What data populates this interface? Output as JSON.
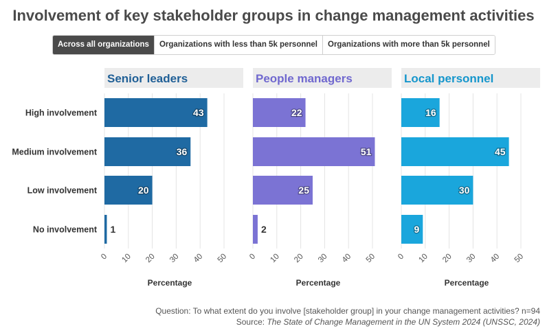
{
  "title": "Involvement of key stakeholder groups in change management activities",
  "tabs": [
    {
      "label": "Across all organizations",
      "active": true
    },
    {
      "label": "Organizations with less than 5k personnel",
      "active": false
    },
    {
      "label": "Organizations with more than 5k personnel",
      "active": false
    }
  ],
  "footer": {
    "question": "Question: To what extent do you involve [stakeholder group] in your change management activities? n=94",
    "source_prefix": "Source: ",
    "source_title": "The State of Change Management in the UN System 2024 (UNSSC, 2024)"
  },
  "chart_data": {
    "type": "bar",
    "orientation": "horizontal",
    "categories": [
      "High involvement",
      "Medium involvement",
      "Low involvement",
      "No involvement"
    ],
    "xlabel": "Percentage",
    "xlim": [
      0,
      55
    ],
    "xticks": [
      0,
      10,
      20,
      30,
      40,
      50
    ],
    "grid": true,
    "panels": [
      {
        "name": "Senior leaders",
        "color": "#1f6aa3",
        "title_color": "#1f5f96",
        "values": [
          43,
          36,
          20,
          1
        ]
      },
      {
        "name": "People managers",
        "color": "#7b73d4",
        "title_color": "#7068cf",
        "values": [
          22,
          51,
          25,
          2
        ]
      },
      {
        "name": "Local personnel",
        "color": "#1aa6dc",
        "title_color": "#1596cc",
        "values": [
          16,
          45,
          30,
          9
        ]
      }
    ]
  }
}
